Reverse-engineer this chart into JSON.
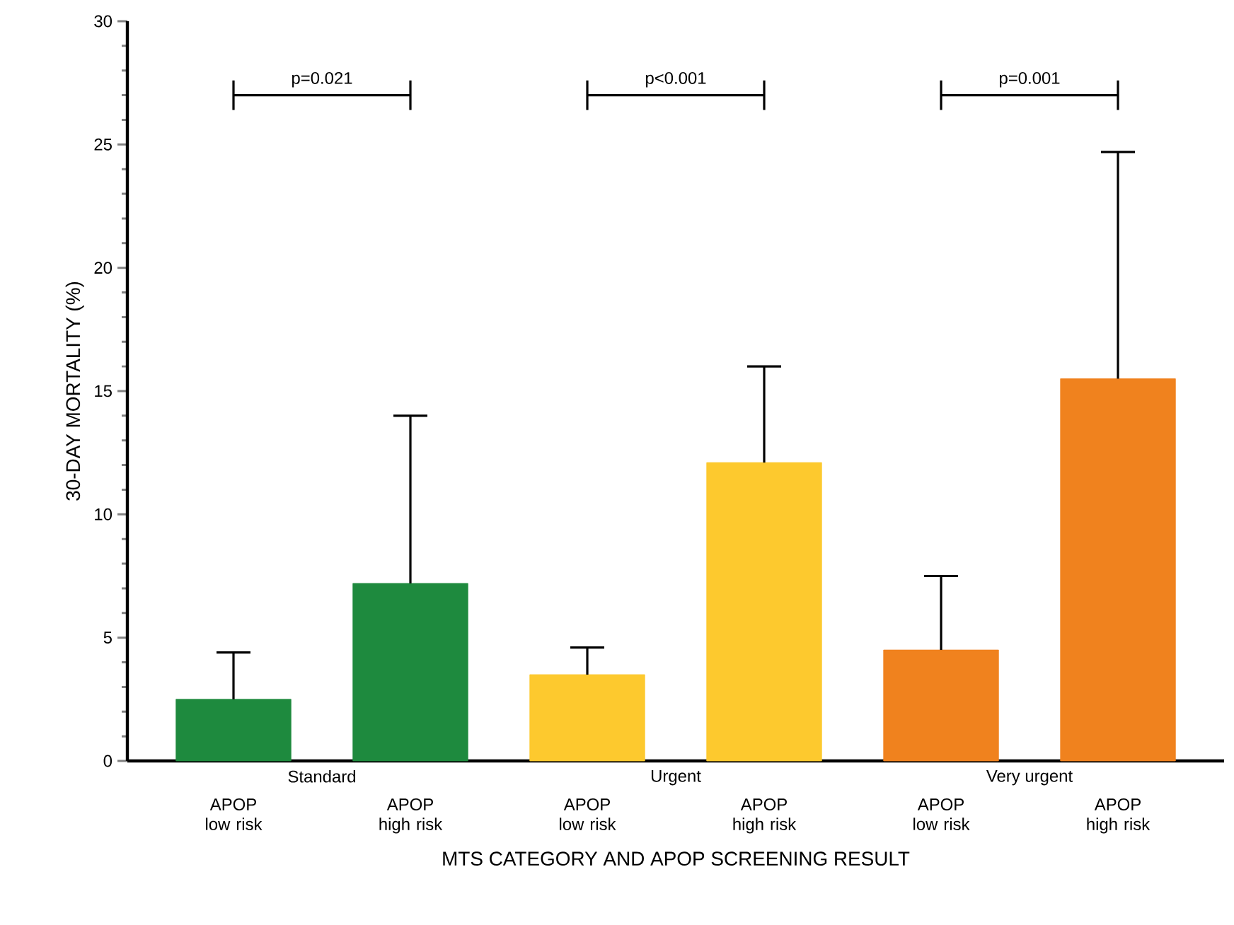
{
  "chart_data": {
    "type": "bar",
    "xlabel": "MTS CATEGORY AND APOP SCREENING RESULT",
    "ylabel": "30-DAY MORTALITY (%)",
    "categories": [
      "APOP low risk",
      "APOP high risk",
      "APOP low risk",
      "APOP high risk",
      "APOP low risk",
      "APOP high risk"
    ],
    "values": [
      2.5,
      7.2,
      3.5,
      12.1,
      4.5,
      15.5
    ],
    "colors": [
      "#1e8a3e",
      "#1e8a3e",
      "#fdc92e",
      "#fdc92e",
      "#f0821e",
      "#f0821e"
    ],
    "errors": [
      [
        2.5,
        4.4
      ],
      [
        7.2,
        14.0
      ],
      [
        3.5,
        4.6
      ],
      [
        12.1,
        16.0
      ],
      [
        4.5,
        7.5
      ],
      [
        15.5,
        24.7
      ]
    ],
    "ylim": [
      0,
      30
    ],
    "yticks": [
      0,
      5,
      10,
      15,
      20,
      25,
      30
    ],
    "annotations": [
      "Standard",
      "Urgent",
      "Very urgent",
      "p=0.021",
      "p<0.001",
      "p=0.001"
    ]
  }
}
